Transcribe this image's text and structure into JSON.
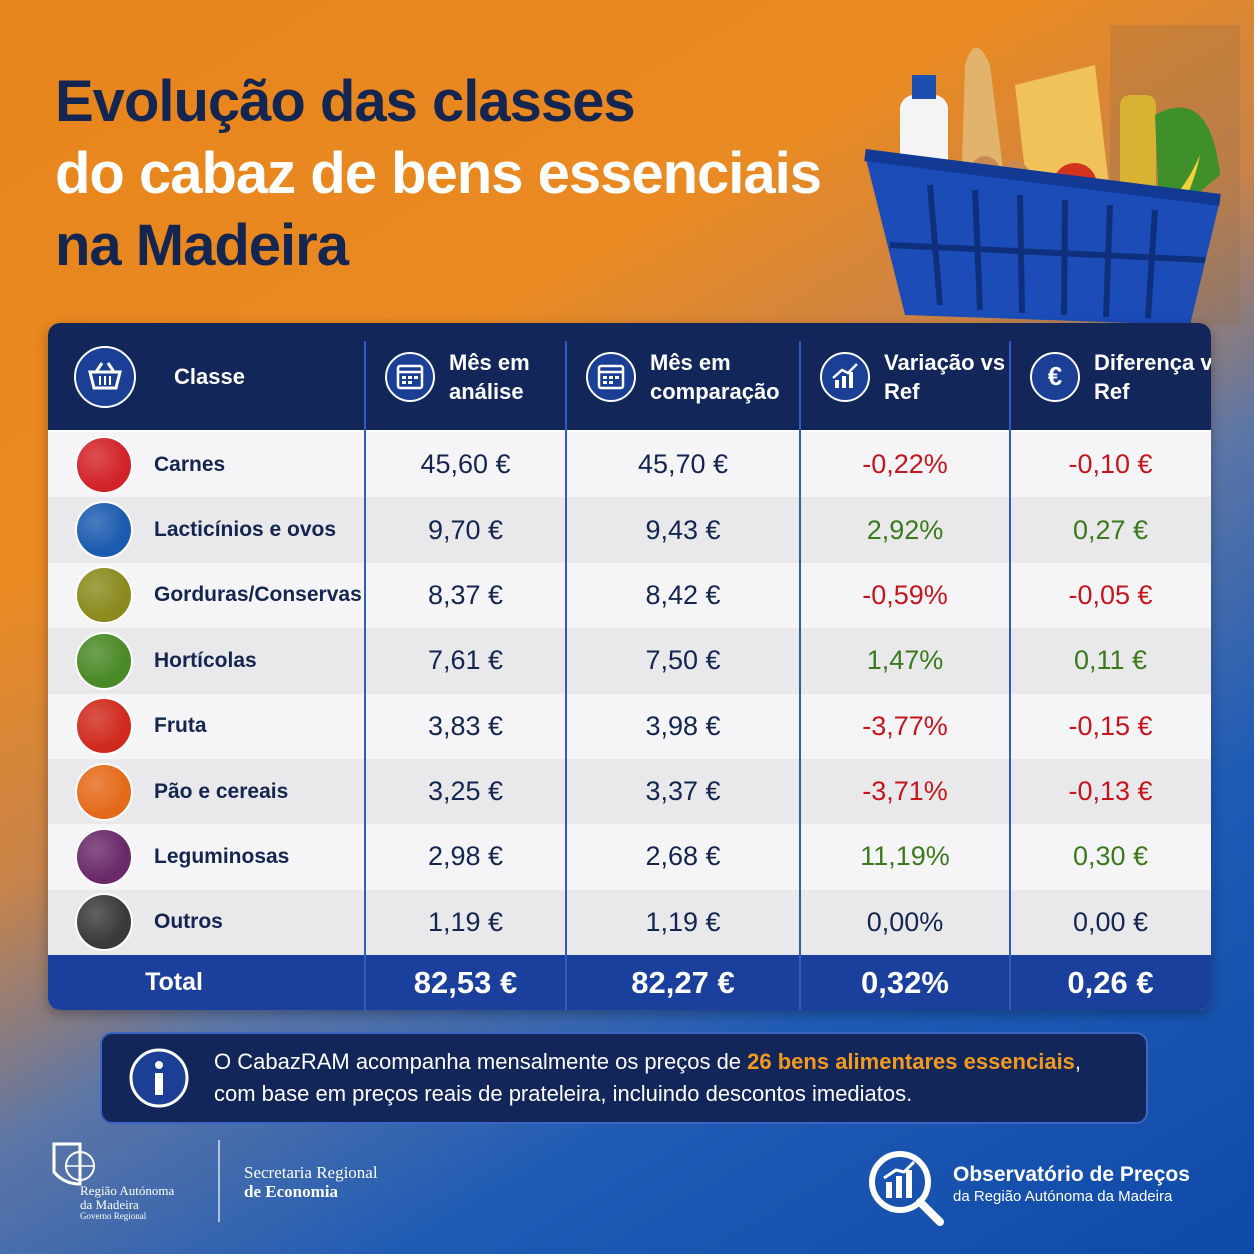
{
  "title": [
    "Evolução das classes",
    "do cabaz de bens essenciais",
    "na Madeira"
  ],
  "table": {
    "headers": [
      [
        "Classe"
      ],
      [
        "Mês em",
        "análise"
      ],
      [
        "Mês em",
        "comparação"
      ],
      [
        "Variação vs",
        "Ref"
      ],
      [
        "Diferença vs",
        "Ref"
      ]
    ],
    "rows": [
      [
        "Carnes",
        "45,60 €",
        "45,70 €",
        "-0,22%",
        "-0,10 €"
      ],
      [
        "Lacticínios e ovos",
        "9,70 €",
        "9,43 €",
        "2,92%",
        "0,27 €"
      ],
      [
        "Gorduras/Conservas",
        "8,37 €",
        "8,42 €",
        "-0,59%",
        "-0,05 €"
      ],
      [
        "Hortícolas",
        "7,61 €",
        "7,50 €",
        "1,47%",
        "0,11 €"
      ],
      [
        "Fruta",
        "3,83 €",
        "3,98 €",
        "-3,77%",
        "-0,15 €"
      ],
      [
        "Pão e cereais",
        "3,25 €",
        "3,37 €",
        "-3,71%",
        "-0,13 €"
      ],
      [
        "Leguminosas",
        "2,98 €",
        "2,68 €",
        "11,19%",
        "0,30 €"
      ],
      [
        "Outros",
        "1,19 €",
        "1,19 €",
        "0,00%",
        "0,00 €"
      ]
    ],
    "total": [
      "Total",
      "82,53 €",
      "82,27 €",
      "0,32%",
      "0,26 €"
    ],
    "variation_colors": {
      "down": "#c4161c",
      "up": "#3b7a1c",
      "flat": "#14254f"
    }
  },
  "info": {
    "parts": [
      "O CabazRAM acompanha mensalmente os preços de ",
      "26 bens alimentares essenciais",
      ","
    ],
    "line2": "com base em preços reais de prateleira, incluindo descontos imediatos."
  },
  "footer": {
    "region": [
      "Região Autónoma",
      "da Madeira",
      "Governo Regional"
    ],
    "secretariat": [
      "Secretaria Regional",
      "de Economia"
    ],
    "observatory": [
      "Observatório de Preços",
      "da Região Autónoma da Madeira"
    ]
  }
}
